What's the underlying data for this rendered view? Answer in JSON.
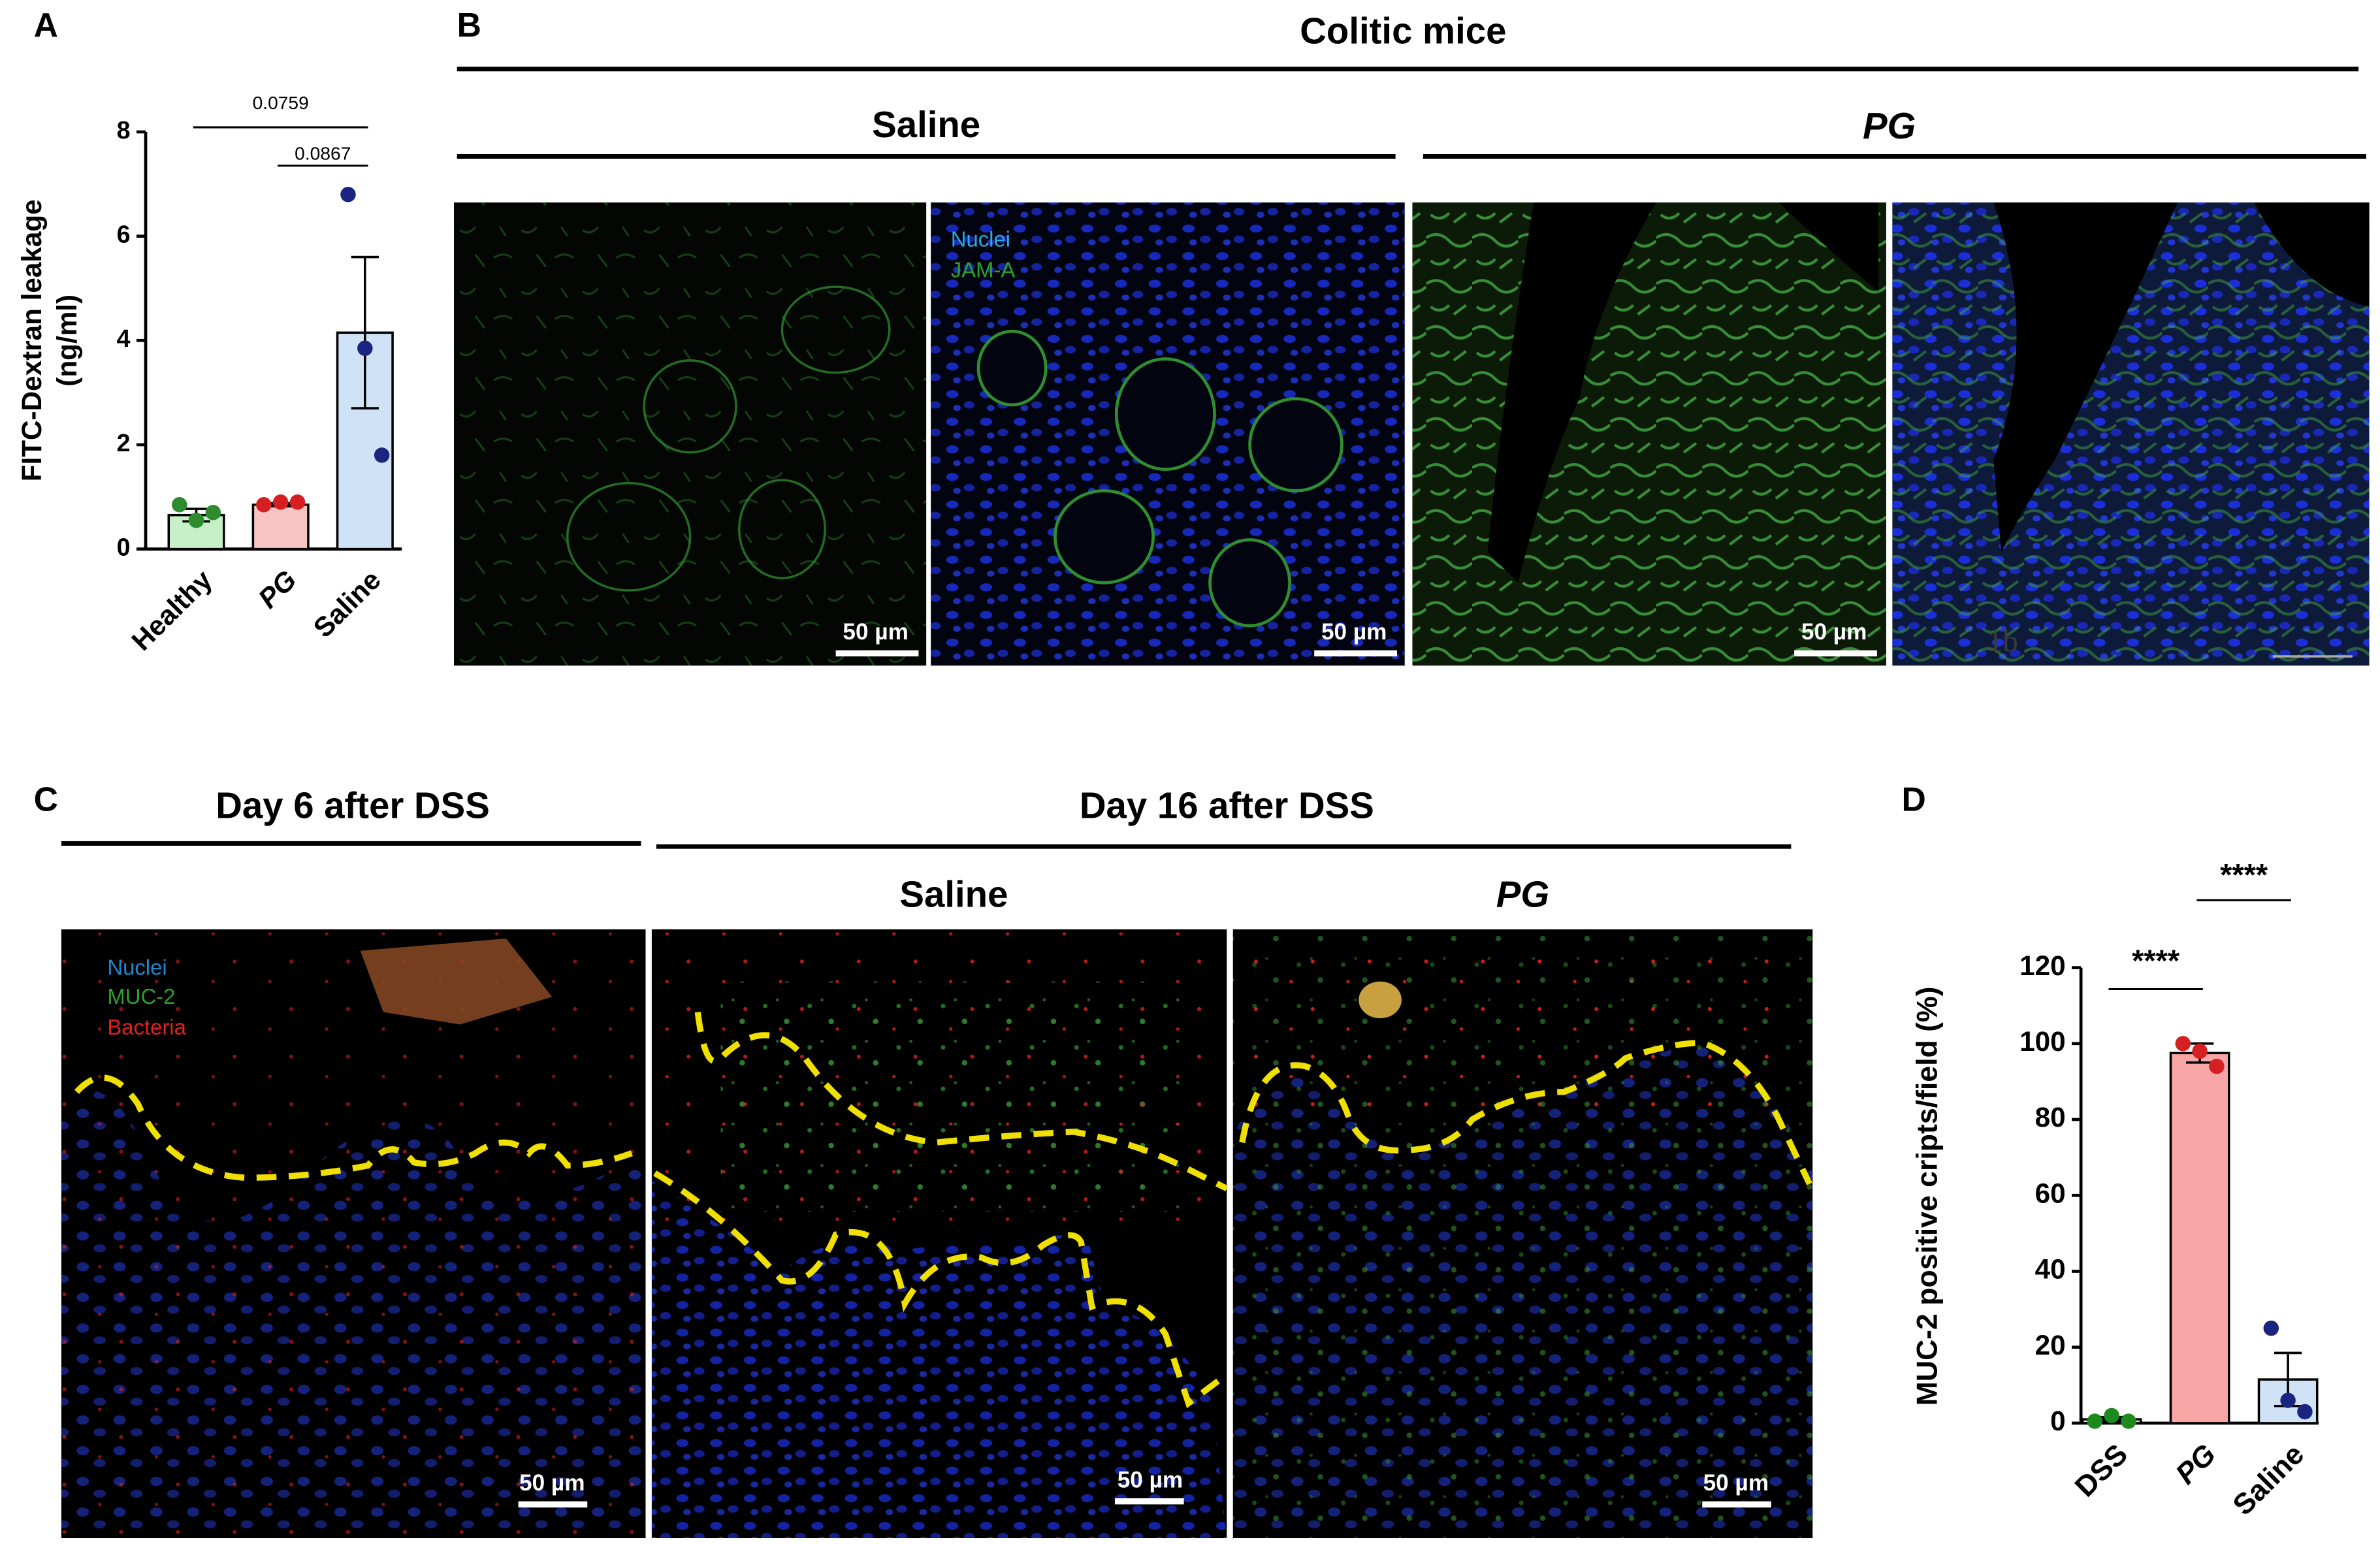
{
  "panel_labels": [
    "A",
    "B",
    "C",
    "D"
  ],
  "panel_b": {
    "title": "Colitic mice",
    "groups": [
      "Saline",
      "PG"
    ],
    "legend": [
      "Nuclei",
      "JAM-A"
    ],
    "scale_bars": [
      "50 µm",
      "50 µm",
      "50 µm"
    ],
    "watermark": "1b"
  },
  "panel_c": {
    "groups": [
      "Day 6 after DSS",
      "Day 16 after DSS"
    ],
    "subgroups": [
      "Saline",
      "PG"
    ],
    "legend": [
      "Nuclei",
      "MUC-2",
      "Bacteria"
    ],
    "scale_bars": [
      "50 µm",
      "50 µm",
      "50 µm"
    ]
  },
  "chart_data": [
    {
      "type": "bar",
      "ylabel": [
        "FITC-Dextran leakage",
        "(ng/ml)"
      ],
      "categories": [
        "Healthy",
        "PG",
        "Saline"
      ],
      "category_style": [
        "normal",
        "italic",
        "normal"
      ],
      "values": [
        0.65,
        0.85,
        4.15
      ],
      "errors": [
        0.12,
        0.03,
        1.45
      ],
      "points": [
        [
          0.85,
          0.55,
          0.7
        ],
        [
          0.85,
          0.9,
          0.9
        ],
        [
          6.8,
          3.85,
          1.8
        ]
      ],
      "colors": [
        "#c8f0c8",
        "#f9c4c4",
        "#cfe2f6"
      ],
      "point_colors": [
        "#2e8b2e",
        "#d42020",
        "#1a2580"
      ],
      "ylim": [
        0,
        8
      ],
      "yticks": [
        0,
        2,
        4,
        6,
        8
      ],
      "annotations": [
        {
          "text": "0.0759",
          "between": [
            "Healthy",
            "Saline"
          ]
        },
        {
          "text": "0.0867",
          "between": [
            "PG",
            "Saline"
          ]
        }
      ]
    },
    {
      "type": "bar",
      "ylabel": [
        "MUC-2 positive cripts/field (%)"
      ],
      "categories": [
        "DSS",
        "PG",
        "Saline"
      ],
      "category_style": [
        "normal",
        "italic",
        "normal"
      ],
      "values": [
        1,
        97.5,
        11.5
      ],
      "errors": [
        0.6,
        2.5,
        7
      ],
      "points": [
        [
          0.5,
          2,
          0.5
        ],
        [
          100,
          98,
          94
        ],
        [
          25,
          6,
          3
        ]
      ],
      "colors": [
        "#c8f0c8",
        "#f9a6a6",
        "#cfe2f6"
      ],
      "point_colors": [
        "#1e8a1e",
        "#d42020",
        "#1a2580"
      ],
      "ylim": [
        0,
        120
      ],
      "yticks": [
        0,
        20,
        40,
        60,
        80,
        100,
        120
      ],
      "annotations": [
        {
          "text": "****",
          "between": [
            "DSS",
            "PG"
          ]
        },
        {
          "text": "****",
          "between": [
            "PG",
            "Saline"
          ]
        }
      ]
    }
  ]
}
